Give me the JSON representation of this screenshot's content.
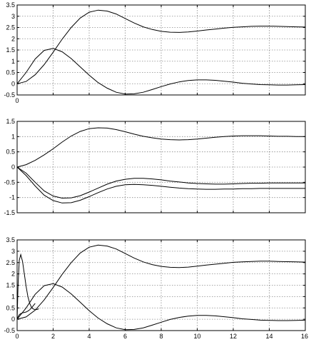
{
  "chart_data": [
    {
      "type": "line",
      "xlim": [
        0,
        16
      ],
      "ylim": [
        -0.5,
        3.5
      ],
      "x_ticks": [
        0
      ],
      "y_ticks": [
        -0.5,
        0,
        0.5,
        1,
        1.5,
        2,
        2.5,
        3,
        3.5
      ],
      "grid": true,
      "series": [
        {
          "x": [
            0,
            0.5,
            1,
            1.5,
            2,
            2.5,
            3,
            3.5,
            4,
            4.5,
            5,
            5.5,
            6,
            6.5,
            7,
            7.5,
            8,
            8.5,
            9,
            9.5,
            10,
            10.5,
            11,
            11.5,
            12,
            12.5,
            13,
            13.5,
            14,
            14.5,
            15,
            15.5,
            16
          ],
          "values": [
            0,
            0.1,
            0.4,
            0.85,
            1.4,
            1.98,
            2.5,
            2.92,
            3.18,
            3.27,
            3.23,
            3.1,
            2.9,
            2.7,
            2.53,
            2.41,
            2.33,
            2.29,
            2.28,
            2.3,
            2.34,
            2.39,
            2.43,
            2.47,
            2.51,
            2.53,
            2.55,
            2.56,
            2.56,
            2.55,
            2.54,
            2.53,
            2.52
          ]
        },
        {
          "x": [
            0,
            0.5,
            1,
            1.5,
            2,
            2.5,
            3,
            3.5,
            4,
            4.5,
            5,
            5.5,
            6,
            6.5,
            7,
            7.5,
            8,
            8.5,
            9,
            9.5,
            10,
            10.5,
            11,
            11.5,
            12,
            12.5,
            13,
            13.5,
            14,
            14.5,
            15,
            15.5,
            16
          ],
          "values": [
            0,
            0.5,
            1.1,
            1.48,
            1.57,
            1.42,
            1.12,
            0.75,
            0.38,
            0.05,
            -0.2,
            -0.38,
            -0.46,
            -0.45,
            -0.38,
            -0.26,
            -0.13,
            -0.01,
            0.08,
            0.14,
            0.17,
            0.17,
            0.15,
            0.11,
            0.07,
            0.02,
            -0.01,
            -0.04,
            -0.05,
            -0.06,
            -0.06,
            -0.05,
            -0.04
          ]
        }
      ]
    },
    {
      "type": "line",
      "xlim": [
        0,
        16
      ],
      "ylim": [
        -1.5,
        1.5
      ],
      "x_ticks": [],
      "y_ticks": [
        -1.5,
        -1,
        -0.5,
        0,
        0.5,
        1,
        1.5
      ],
      "grid": true,
      "series": [
        {
          "x": [
            0,
            0.5,
            1,
            1.5,
            2,
            2.5,
            3,
            3.5,
            4,
            4.5,
            5,
            5.5,
            6,
            6.5,
            7,
            7.5,
            8,
            8.5,
            9,
            9.5,
            10,
            10.5,
            11,
            11.5,
            12,
            12.5,
            13,
            13.5,
            14,
            14.5,
            15,
            15.5,
            16
          ],
          "values": [
            0,
            0.08,
            0.22,
            0.4,
            0.6,
            0.82,
            1.02,
            1.17,
            1.26,
            1.29,
            1.28,
            1.23,
            1.16,
            1.08,
            1.01,
            0.96,
            0.92,
            0.9,
            0.89,
            0.9,
            0.92,
            0.95,
            0.98,
            1.0,
            1.02,
            1.03,
            1.03,
            1.03,
            1.02,
            1.01,
            1.01,
            1.0,
            1.0
          ]
        },
        {
          "x": [
            0,
            0.5,
            1,
            1.5,
            2,
            2.5,
            3,
            3.5,
            4,
            4.5,
            5,
            5.5,
            6,
            6.5,
            7,
            7.5,
            8,
            8.5,
            9,
            9.5,
            10,
            10.5,
            11,
            11.5,
            12,
            12.5,
            13,
            13.5,
            14,
            14.5,
            15,
            15.5,
            16
          ],
          "values": [
            0,
            -0.2,
            -0.5,
            -0.78,
            -0.95,
            -1.02,
            -1.01,
            -0.94,
            -0.82,
            -0.69,
            -0.56,
            -0.46,
            -0.4,
            -0.37,
            -0.37,
            -0.39,
            -0.42,
            -0.46,
            -0.49,
            -0.52,
            -0.54,
            -0.55,
            -0.56,
            -0.56,
            -0.55,
            -0.54,
            -0.53,
            -0.53,
            -0.52,
            -0.52,
            -0.52,
            -0.52,
            -0.52
          ]
        },
        {
          "x": [
            0,
            0.5,
            1,
            1.5,
            2,
            2.5,
            3,
            3.5,
            4,
            4.5,
            5,
            5.5,
            6,
            6.5,
            7,
            7.5,
            8,
            8.5,
            9,
            9.5,
            10,
            10.5,
            11,
            11.5,
            12,
            12.5,
            13,
            13.5,
            14,
            14.5,
            15,
            15.5,
            16
          ],
          "values": [
            0,
            -0.28,
            -0.62,
            -0.92,
            -1.1,
            -1.18,
            -1.17,
            -1.09,
            -0.97,
            -0.84,
            -0.72,
            -0.63,
            -0.58,
            -0.57,
            -0.58,
            -0.6,
            -0.63,
            -0.66,
            -0.69,
            -0.71,
            -0.72,
            -0.73,
            -0.73,
            -0.72,
            -0.72,
            -0.71,
            -0.71,
            -0.7,
            -0.7,
            -0.7,
            -0.7,
            -0.7,
            -0.7
          ]
        }
      ]
    },
    {
      "type": "line",
      "xlim": [
        0,
        16
      ],
      "ylim": [
        -0.5,
        3.5
      ],
      "x_ticks": [
        0,
        2,
        4,
        6,
        8,
        10,
        12,
        14,
        16
      ],
      "y_ticks": [
        -0.5,
        0,
        0.5,
        1,
        1.5,
        2,
        2.5,
        3,
        3.5
      ],
      "grid": true,
      "series": [
        {
          "x": [
            0,
            0.5,
            1,
            1.5,
            2,
            2.5,
            3,
            3.5,
            4,
            4.5,
            5,
            5.5,
            6,
            6.5,
            7,
            7.5,
            8,
            8.5,
            9,
            9.5,
            10,
            10.5,
            11,
            11.5,
            12,
            12.5,
            13,
            13.5,
            14,
            14.5,
            15,
            15.5,
            16
          ],
          "values": [
            0,
            0.1,
            0.4,
            0.85,
            1.4,
            1.98,
            2.5,
            2.92,
            3.18,
            3.27,
            3.23,
            3.1,
            2.9,
            2.7,
            2.53,
            2.41,
            2.33,
            2.29,
            2.28,
            2.3,
            2.34,
            2.39,
            2.43,
            2.47,
            2.51,
            2.53,
            2.55,
            2.56,
            2.56,
            2.55,
            2.54,
            2.53,
            2.52
          ]
        },
        {
          "x": [
            0,
            0.5,
            1,
            1.5,
            2,
            2.5,
            3,
            3.5,
            4,
            4.5,
            5,
            5.5,
            6,
            6.5,
            7,
            7.5,
            8,
            8.5,
            9,
            9.5,
            10,
            10.5,
            11,
            11.5,
            12,
            12.5,
            13,
            13.5,
            14,
            14.5,
            15,
            15.5,
            16
          ],
          "values": [
            0,
            0.5,
            1.1,
            1.48,
            1.57,
            1.42,
            1.12,
            0.75,
            0.38,
            0.05,
            -0.2,
            -0.38,
            -0.46,
            -0.45,
            -0.38,
            -0.26,
            -0.13,
            -0.01,
            0.08,
            0.14,
            0.17,
            0.17,
            0.15,
            0.11,
            0.07,
            0.02,
            -0.01,
            -0.04,
            -0.05,
            -0.06,
            -0.06,
            -0.05,
            -0.04
          ]
        },
        {
          "x": [
            0,
            0.05,
            0.12,
            0.2,
            0.3,
            0.4,
            0.5,
            0.6,
            0.7,
            0.8,
            0.9,
            1.0,
            1.1,
            1.2
          ],
          "values": [
            0,
            1.5,
            2.6,
            2.85,
            2.55,
            2.0,
            1.45,
            1.0,
            0.7,
            0.52,
            0.45,
            0.42,
            0.43,
            0.46
          ]
        },
        {
          "x": [
            0,
            0.05,
            0.12,
            0.2,
            0.3,
            0.4,
            0.5,
            0.6,
            0.7,
            0.8,
            0.9,
            1.0
          ],
          "values": [
            0,
            0.1,
            0.2,
            0.25,
            0.28,
            0.3,
            0.32,
            0.36,
            0.42,
            0.5,
            0.6,
            0.7
          ]
        }
      ]
    }
  ]
}
